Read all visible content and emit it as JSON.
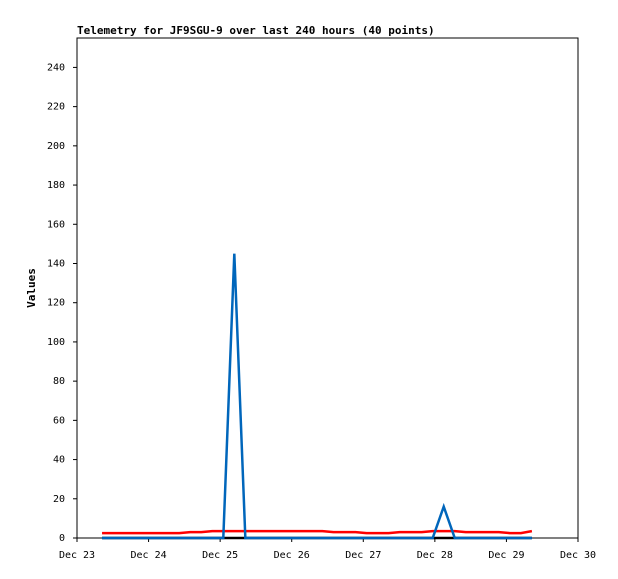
{
  "chart_data": {
    "type": "line",
    "title": "Telemetry for JF9SGU-9 over last 240 hours (40 points)",
    "y_label": "Values",
    "x": [
      23.35,
      23.504,
      23.658,
      23.812,
      23.966,
      24.12,
      24.274,
      24.428,
      24.582,
      24.736,
      24.89,
      25.044,
      25.198,
      25.352,
      25.506,
      25.66,
      25.814,
      25.968,
      26.122,
      26.276,
      26.43,
      26.584,
      26.738,
      26.892,
      27.046,
      27.2,
      27.354,
      27.508,
      27.662,
      27.816,
      27.97,
      28.124,
      28.278,
      28.432,
      28.586,
      28.74,
      28.894,
      29.048,
      29.202,
      29.356
    ],
    "series": [
      {
        "color": "#000000",
        "values": [
          0,
          0,
          0,
          0,
          0,
          0,
          0,
          0,
          0,
          0,
          0,
          0,
          0,
          0,
          0,
          0,
          0,
          0,
          0,
          0,
          0,
          0,
          0,
          0,
          0,
          0,
          0,
          0,
          0,
          0,
          0,
          0,
          0,
          0,
          0,
          0,
          0,
          0,
          0,
          0
        ]
      },
      {
        "color": "#ff0000",
        "values": [
          2.5,
          2.5,
          2.5,
          2.5,
          2.5,
          2.5,
          2.5,
          2.5,
          3,
          3,
          3.5,
          3.5,
          3.5,
          3.5,
          3.5,
          3.5,
          3.5,
          3.5,
          3.5,
          3.5,
          3.5,
          3,
          3,
          3,
          2.5,
          2.5,
          2.5,
          3,
          3,
          3,
          3.5,
          3.5,
          3.5,
          3,
          3,
          3,
          3,
          2.5,
          2.5,
          3.5
        ]
      },
      {
        "color": "#0066bb",
        "values": [
          0,
          0,
          0,
          0,
          0,
          0,
          0,
          0,
          0,
          0,
          0,
          0,
          145,
          0,
          0,
          0,
          0,
          0,
          0,
          0,
          0,
          0,
          0,
          0,
          0,
          0,
          0,
          0,
          0,
          0,
          0,
          16,
          0,
          0,
          0,
          0,
          0,
          0,
          0,
          0
        ]
      }
    ],
    "xlim": [
      23,
      30
    ],
    "xticks": [
      {
        "value": 23,
        "label": "Dec 23"
      },
      {
        "value": 24,
        "label": "Dec 24"
      },
      {
        "value": 25,
        "label": "Dec 25"
      },
      {
        "value": 26,
        "label": "Dec 26"
      },
      {
        "value": 27,
        "label": "Dec 27"
      },
      {
        "value": 28,
        "label": "Dec 28"
      },
      {
        "value": 29,
        "label": "Dec 29"
      },
      {
        "value": 30,
        "label": "Dec 30"
      }
    ],
    "ylim": [
      0,
      255
    ],
    "yticks": [
      0,
      20,
      40,
      60,
      80,
      100,
      120,
      140,
      160,
      180,
      200,
      220,
      240
    ],
    "grid": false
  }
}
